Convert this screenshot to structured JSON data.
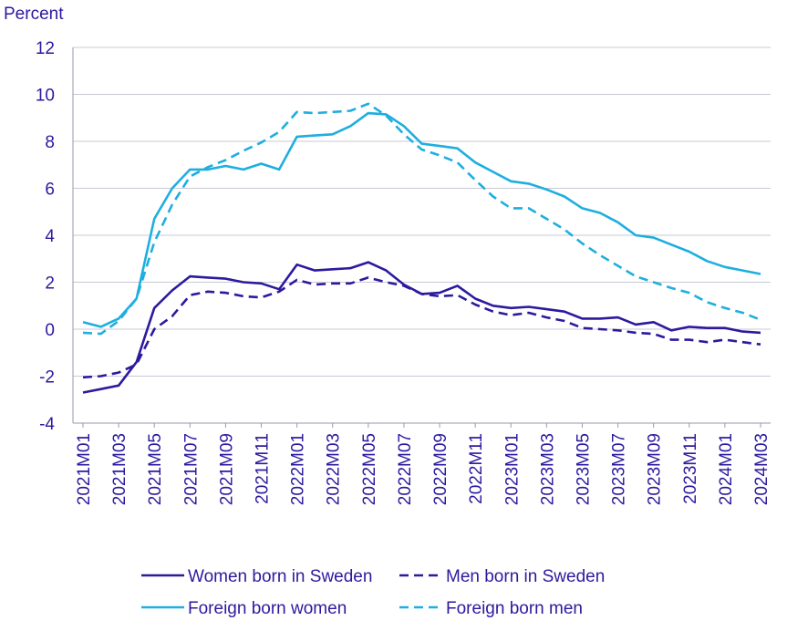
{
  "chart_data": {
    "type": "line",
    "ylabel": "Percent",
    "ylim": [
      -4,
      12
    ],
    "yticks": [
      -4,
      -2,
      0,
      2,
      4,
      6,
      8,
      10,
      12
    ],
    "grid": true,
    "categories": [
      "2021M01",
      "2021M02",
      "2021M03",
      "2021M04",
      "2021M05",
      "2021M06",
      "2021M07",
      "2021M08",
      "2021M09",
      "2021M10",
      "2021M11",
      "2021M12",
      "2022M01",
      "2022M02",
      "2022M03",
      "2022M04",
      "2022M05",
      "2022M06",
      "2022M07",
      "2022M08",
      "2022M09",
      "2022M10",
      "2022M11",
      "2022M12",
      "2023M01",
      "2023M02",
      "2023M03",
      "2023M04",
      "2023M05",
      "2023M06",
      "2023M07",
      "2023M08",
      "2023M09",
      "2023M10",
      "2023M11",
      "2023M12",
      "2024M01",
      "2024M02",
      "2024M03"
    ],
    "xtick_labels": [
      "2021M01",
      "2021M03",
      "2021M05",
      "2021M07",
      "2021M09",
      "2021M11",
      "2022M01",
      "2022M03",
      "2022M05",
      "2022M07",
      "2022M09",
      "2022M11",
      "2023M01",
      "2023M03",
      "2023M05",
      "2023M07",
      "2023M09",
      "2023M11",
      "2024M01",
      "2024M03"
    ],
    "series": [
      {
        "name": "Women born in Sweden",
        "color": "#2c1a9e",
        "dash": false,
        "values": [
          -2.7,
          -2.55,
          -2.4,
          -1.4,
          0.9,
          1.65,
          2.25,
          2.2,
          2.15,
          2.0,
          1.95,
          1.7,
          2.75,
          2.5,
          2.55,
          2.6,
          2.85,
          2.5,
          1.9,
          1.5,
          1.55,
          1.85,
          1.3,
          1.0,
          0.9,
          0.95,
          0.85,
          0.75,
          0.45,
          0.45,
          0.5,
          0.2,
          0.3,
          -0.05,
          0.1,
          0.05,
          0.05,
          -0.1,
          -0.15
        ]
      },
      {
        "name": "Men born in Sweden",
        "color": "#2c1a9e",
        "dash": true,
        "values": [
          -2.05,
          -2.0,
          -1.85,
          -1.5,
          0.0,
          0.55,
          1.45,
          1.6,
          1.55,
          1.4,
          1.35,
          1.6,
          2.1,
          1.9,
          1.95,
          1.95,
          2.2,
          2.0,
          1.85,
          1.5,
          1.4,
          1.45,
          1.05,
          0.75,
          0.6,
          0.7,
          0.5,
          0.35,
          0.05,
          0.0,
          -0.05,
          -0.15,
          -0.2,
          -0.45,
          -0.45,
          -0.55,
          -0.45,
          -0.55,
          -0.65
        ]
      },
      {
        "name": "Foreign born women",
        "color": "#1eaee0",
        "dash": false,
        "values": [
          0.3,
          0.1,
          0.45,
          1.3,
          4.7,
          6.0,
          6.8,
          6.8,
          6.95,
          6.8,
          7.05,
          6.8,
          8.2,
          8.25,
          8.3,
          8.65,
          9.2,
          9.15,
          8.65,
          7.9,
          7.8,
          7.7,
          7.1,
          6.7,
          6.3,
          6.2,
          5.95,
          5.65,
          5.15,
          4.95,
          4.55,
          4.0,
          3.9,
          3.6,
          3.3,
          2.9,
          2.65,
          2.5,
          2.35
        ]
      },
      {
        "name": "Foreign born men",
        "color": "#1eaee0",
        "dash": true,
        "values": [
          -0.15,
          -0.2,
          0.35,
          1.3,
          3.7,
          5.3,
          6.5,
          6.9,
          7.2,
          7.6,
          7.95,
          8.4,
          9.25,
          9.2,
          9.25,
          9.3,
          9.6,
          9.1,
          8.3,
          7.65,
          7.4,
          7.1,
          6.35,
          5.65,
          5.15,
          5.15,
          4.7,
          4.25,
          3.65,
          3.15,
          2.7,
          2.25,
          2.0,
          1.75,
          1.55,
          1.15,
          0.9,
          0.7,
          0.4
        ]
      }
    ],
    "legend_position": "bottom"
  }
}
